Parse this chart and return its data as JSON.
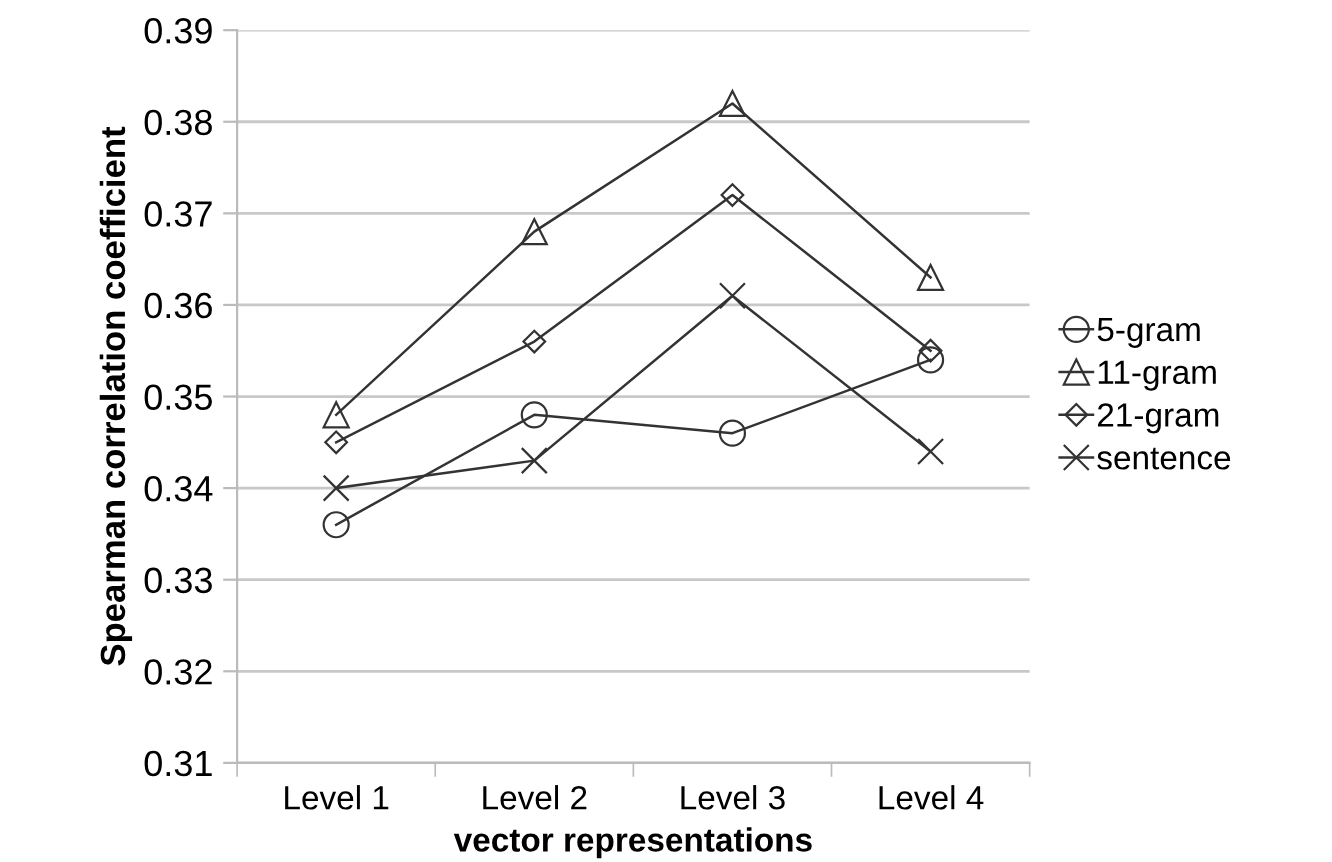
{
  "chart_data": {
    "type": "line",
    "xlabel": "vector representations",
    "ylabel": "Spearman correlation coefficient",
    "categories": [
      "Level 1",
      "Level 2",
      "Level 3",
      "Level 4"
    ],
    "series": [
      {
        "name": "5-gram",
        "color": "#333333",
        "marker": "circle",
        "values": [
          0.336,
          0.348,
          0.346,
          0.354
        ]
      },
      {
        "name": "11-gram",
        "color": "#333333",
        "marker": "triangle",
        "values": [
          0.348,
          0.368,
          0.382,
          0.363
        ]
      },
      {
        "name": "21-gram",
        "color": "#333333",
        "marker": "diamond",
        "values": [
          0.345,
          0.356,
          0.372,
          0.355
        ]
      },
      {
        "name": "sentence",
        "color": "#333333",
        "marker": "cross",
        "values": [
          0.34,
          0.343,
          0.361,
          0.344
        ]
      }
    ],
    "ylim": [
      0.31,
      0.39
    ],
    "yticks": [
      0.31,
      0.32,
      0.33,
      0.34,
      0.35,
      0.36,
      0.37,
      0.38,
      0.39
    ],
    "grid": "y",
    "legend": "right",
    "line_style": "solid"
  }
}
